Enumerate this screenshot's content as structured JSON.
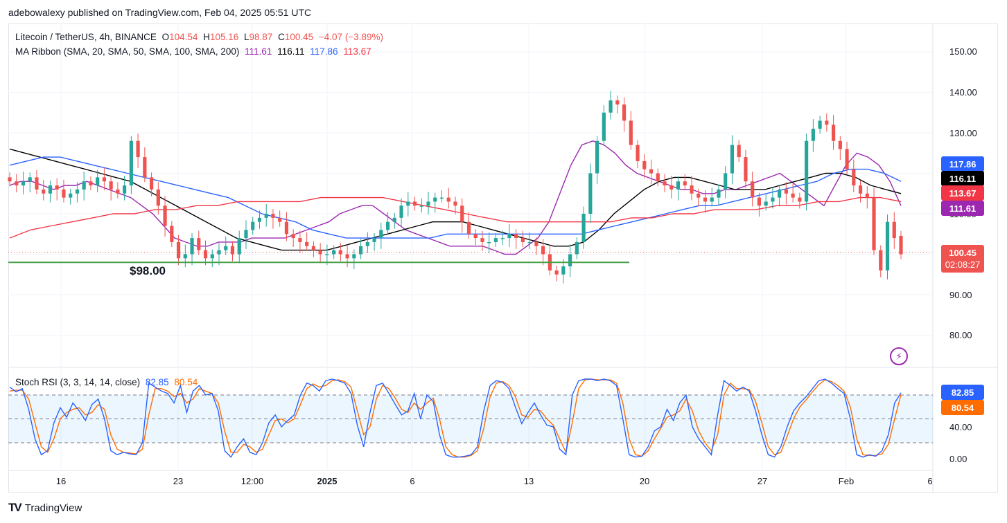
{
  "header": {
    "published": "adebowalexy published on TradingView.com, Feb 04, 2025 05:51 UTC"
  },
  "legend": {
    "symbol": "Litecoin / TetherUS, 4h, BINANCE",
    "o_label": "O",
    "o": "104.54",
    "h_label": "H",
    "h": "105.16",
    "l_label": "L",
    "l": "98.87",
    "c_label": "C",
    "c": "100.45",
    "change": "−4.07 (−3.89%)",
    "ma_label": "MA Ribbon (SMA, 20, SMA, 50, SMA, 100, SMA, 200)",
    "ma20": "111.61",
    "ma50": "116.11",
    "ma100": "117.86",
    "ma200": "113.67",
    "rsi_label": "Stoch RSI (3, 3, 14, 14, close)",
    "rsi_k": "82.85",
    "rsi_d": "80.54"
  },
  "colors": {
    "up": "#26a69a",
    "down": "#ef5350",
    "ma20": "#9c27b0",
    "ma50": "#000000",
    "ma100": "#2962ff",
    "ma200": "#f23645",
    "support": "#43a047",
    "k": "#2962ff",
    "d": "#ff6d00"
  },
  "price_axis": {
    "ticks": [
      "150.00",
      "140.00",
      "130.00",
      "110.00",
      "90.00",
      "80.00"
    ]
  },
  "price_tags": {
    "ma100": "117.86",
    "ma50": "116.11",
    "ma200": "113.67",
    "ma20": "111.61",
    "last": "100.45",
    "countdown": "02:08:27"
  },
  "rsi_axis": {
    "ticks": [
      "40.00",
      "0.00"
    ],
    "tag_k": "82.85",
    "tag_d": "80.54"
  },
  "time_axis": [
    "16",
    "23",
    "12:00",
    "2025",
    "6",
    "13",
    "20",
    "27",
    "Feb",
    "6"
  ],
  "annotations": {
    "support_label": "$98.00"
  },
  "footer": {
    "logo": "TV",
    "brand": "TradingView"
  },
  "chart_data": {
    "type": "candlestick",
    "timeframe": "4h",
    "ylim": [
      75,
      155
    ],
    "support_level": 98.0,
    "last_price": 100.45,
    "ohlc_last": {
      "open": 104.54,
      "high": 105.16,
      "low": 98.87,
      "close": 100.45
    },
    "closes": [
      118,
      117,
      118,
      119,
      116,
      115,
      117,
      116,
      114,
      115,
      116,
      118,
      117,
      119,
      118,
      116,
      115,
      117,
      128,
      124,
      119,
      116,
      112,
      107,
      103,
      99,
      100,
      104,
      101,
      99,
      100,
      101,
      102,
      100,
      104,
      106,
      108,
      109,
      110,
      109,
      108,
      105,
      104,
      103,
      102,
      101,
      100,
      100,
      101,
      100,
      99,
      100,
      102,
      103,
      104,
      106,
      108,
      109,
      112,
      113,
      112,
      112,
      113,
      114,
      114,
      113,
      112,
      108,
      105,
      104,
      103,
      103,
      104,
      104,
      105,
      104,
      103,
      103,
      102,
      100,
      96,
      95,
      97,
      100,
      103,
      110,
      120,
      128,
      135,
      138,
      137,
      133,
      127,
      123,
      121,
      120,
      118,
      117,
      116,
      118,
      117,
      115,
      114,
      113,
      114,
      116,
      120,
      127,
      124,
      118,
      114,
      112,
      113,
      114,
      116,
      115,
      114,
      113,
      128,
      131,
      133,
      132,
      128,
      126,
      121,
      117,
      115,
      114,
      101,
      96,
      108,
      104,
      100
    ],
    "ma_series": [
      {
        "name": "SMA 20",
        "color": "#9c27b0",
        "values": [
          117,
          118,
          118,
          117,
          116,
          117,
          117,
          118,
          117,
          116,
          115,
          114,
          112,
          110,
          107,
          104,
          103,
          102,
          102,
          103,
          103,
          103,
          104,
          104,
          104,
          104,
          105,
          106,
          107,
          108,
          110,
          111,
          112,
          112,
          110,
          108,
          106,
          105,
          104,
          103,
          102,
          102,
          102,
          102,
          101,
          100,
          100,
          102,
          104,
          108,
          115,
          122,
          127,
          128,
          127,
          125,
          122,
          120,
          119,
          118,
          117,
          116,
          116,
          115,
          115,
          116,
          116,
          117,
          118,
          119,
          120,
          118,
          116,
          114,
          112,
          117,
          122,
          125,
          124,
          122,
          118,
          112
        ]
      },
      {
        "name": "SMA 50",
        "color": "#000000",
        "values": [
          126,
          125,
          124,
          123,
          122,
          121,
          120,
          119,
          118,
          116,
          114,
          112,
          110,
          108,
          106,
          104,
          103,
          102,
          101,
          101,
          101,
          101,
          102,
          103,
          104,
          105,
          106,
          107,
          108,
          108,
          108,
          107,
          106,
          105,
          104,
          103,
          102,
          102,
          103,
          106,
          110,
          113,
          116,
          118,
          119,
          119,
          118,
          117,
          116,
          116,
          116,
          117,
          118,
          119,
          120,
          120,
          119,
          117,
          116,
          115
        ]
      },
      {
        "name": "SMA 100",
        "color": "#2962ff",
        "values": [
          122,
          123,
          124,
          124,
          123,
          122,
          121,
          120,
          119,
          118,
          117,
          116,
          115,
          114,
          112,
          110,
          109,
          108,
          106,
          105,
          104,
          104,
          104,
          104,
          104,
          104,
          105,
          105,
          105,
          105,
          105,
          105,
          105,
          105,
          105,
          106,
          107,
          108,
          109,
          110,
          111,
          112,
          112,
          113,
          114,
          115,
          116,
          117,
          118,
          120,
          121,
          121,
          120,
          118
        ]
      },
      {
        "name": "SMA 200",
        "color": "#f23645",
        "values": [
          104,
          106,
          107,
          108,
          109,
          110,
          110,
          111,
          111,
          112,
          112,
          113,
          113,
          113,
          113,
          114,
          114,
          114,
          114,
          113,
          112,
          111,
          110,
          109,
          108,
          108,
          108,
          108,
          108,
          108,
          109,
          109,
          110,
          110,
          111,
          111,
          111,
          112,
          112,
          113,
          113,
          114,
          114,
          113
        ]
      }
    ],
    "stoch_rsi": {
      "ylim": [
        -10,
        110
      ],
      "bands": [
        20,
        80
      ],
      "k": [
        90,
        84,
        88,
        62,
        25,
        5,
        10,
        45,
        64,
        52,
        70,
        60,
        48,
        68,
        75,
        50,
        10,
        5,
        8,
        6,
        5,
        20,
        95,
        90,
        85,
        82,
        70,
        92,
        58,
        85,
        92,
        80,
        82,
        60,
        10,
        2,
        15,
        25,
        8,
        5,
        20,
        45,
        55,
        40,
        48,
        55,
        80,
        95,
        92,
        85,
        98,
        100,
        98,
        95,
        82,
        42,
        15,
        58,
        92,
        95,
        82,
        68,
        55,
        60,
        82,
        50,
        80,
        72,
        30,
        5,
        2,
        2,
        3,
        5,
        15,
        60,
        92,
        98,
        96,
        88,
        65,
        44,
        58,
        70,
        55,
        42,
        40,
        12,
        5,
        80,
        98,
        100,
        100,
        98,
        100,
        98,
        92,
        50,
        5,
        2,
        3,
        15,
        35,
        40,
        62,
        48,
        70,
        80,
        40,
        25,
        15,
        5,
        55,
        98,
        92,
        85,
        90,
        85,
        60,
        30,
        5,
        2,
        15,
        40,
        60,
        70,
        78,
        88,
        98,
        100,
        95,
        88,
        82,
        50,
        5,
        2,
        5,
        3,
        10,
        30,
        70,
        82.85
      ],
      "d": [
        85,
        86,
        86,
        75,
        45,
        15,
        8,
        25,
        50,
        58,
        62,
        64,
        55,
        58,
        68,
        62,
        30,
        12,
        8,
        7,
        6,
        12,
        55,
        88,
        88,
        85,
        78,
        82,
        70,
        75,
        88,
        85,
        82,
        70,
        35,
        8,
        8,
        18,
        15,
        8,
        12,
        30,
        48,
        50,
        45,
        50,
        68,
        88,
        94,
        90,
        92,
        98,
        99,
        97,
        90,
        60,
        30,
        40,
        75,
        92,
        88,
        76,
        62,
        58,
        70,
        62,
        70,
        76,
        50,
        15,
        5,
        2,
        2,
        4,
        10,
        38,
        78,
        95,
        97,
        92,
        78,
        55,
        52,
        62,
        60,
        50,
        42,
        25,
        8,
        45,
        88,
        99,
        100,
        99,
        99,
        99,
        95,
        70,
        25,
        5,
        3,
        10,
        25,
        38,
        52,
        55,
        60,
        75,
        60,
        35,
        20,
        10,
        30,
        80,
        95,
        88,
        88,
        87,
        72,
        45,
        15,
        5,
        8,
        28,
        50,
        65,
        74,
        84,
        93,
        99,
        97,
        92,
        85,
        65,
        25,
        5,
        4,
        4,
        6,
        18,
        50,
        80.54
      ]
    }
  }
}
